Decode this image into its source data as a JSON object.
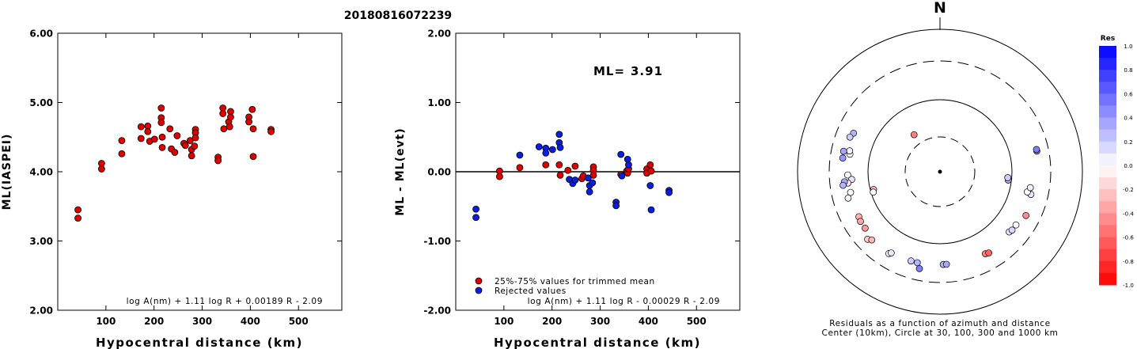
{
  "page_title": "20180816072239",
  "chart_data": [
    {
      "type": "scatter",
      "name": "ml-vs-distance",
      "xlabel": "Hypocentral distance (km)",
      "ylabel": "ML(IASPEI)",
      "xlim": [
        0,
        590
      ],
      "ylim": [
        2.0,
        6.0
      ],
      "x_ticks": [
        "100",
        "200",
        "300",
        "400",
        "500"
      ],
      "y_ticks": [
        "2.00",
        "3.00",
        "4.00",
        "5.00",
        "6.00"
      ],
      "formula": "log A(nm) + 1.11 log R + 0.00189 R - 2.09",
      "marker_color": "#e00000",
      "points": [
        [
          42,
          3.45
        ],
        [
          42,
          3.33
        ],
        [
          91,
          4.12
        ],
        [
          91,
          4.04
        ],
        [
          133,
          4.45
        ],
        [
          133,
          4.26
        ],
        [
          173,
          4.65
        ],
        [
          173,
          4.48
        ],
        [
          187,
          4.66
        ],
        [
          187,
          4.58
        ],
        [
          191,
          4.44
        ],
        [
          201,
          4.47
        ],
        [
          215,
          4.92
        ],
        [
          215,
          4.78
        ],
        [
          215,
          4.71
        ],
        [
          217,
          4.5
        ],
        [
          217,
          4.35
        ],
        [
          233,
          4.62
        ],
        [
          236,
          4.33
        ],
        [
          243,
          4.28
        ],
        [
          248,
          4.52
        ],
        [
          262,
          4.41
        ],
        [
          265,
          4.38
        ],
        [
          275,
          4.45
        ],
        [
          278,
          4.32
        ],
        [
          278,
          4.23
        ],
        [
          284,
          4.37
        ],
        [
          286,
          4.61
        ],
        [
          286,
          4.56
        ],
        [
          286,
          4.49
        ],
        [
          333,
          4.21
        ],
        [
          333,
          4.16
        ],
        [
          343,
          4.92
        ],
        [
          343,
          4.84
        ],
        [
          345,
          4.62
        ],
        [
          355,
          4.72
        ],
        [
          357,
          4.65
        ],
        [
          359,
          4.87
        ],
        [
          359,
          4.79
        ],
        [
          397,
          4.79
        ],
        [
          397,
          4.72
        ],
        [
          404,
          4.9
        ],
        [
          406,
          4.62
        ],
        [
          406,
          4.22
        ],
        [
          443,
          4.61
        ],
        [
          443,
          4.58
        ]
      ]
    },
    {
      "type": "scatter",
      "name": "residual-vs-distance",
      "xlabel": "Hypocentral distance (km)",
      "ylabel": "ML - ML(evt)",
      "xlim": [
        0,
        590
      ],
      "ylim": [
        -2.0,
        2.0
      ],
      "x_ticks": [
        "100",
        "200",
        "300",
        "400",
        "500"
      ],
      "y_ticks": [
        "-2.00",
        "-1.00",
        "0.00",
        "1.00",
        "2.00"
      ],
      "ml_label": "ML=",
      "ml_value": "3.91",
      "formula": "log A(nm) + 1.11 log R - 0.00029 R - 2.09",
      "legend": [
        {
          "label": "25%-75% values for trimmed mean",
          "color": "#e00000"
        },
        {
          "label": "Rejected values",
          "color": "#0a1ee0"
        }
      ],
      "series": [
        {
          "name": "25%-75% values for trimmed mean",
          "color": "#e00000",
          "points": [
            [
              91,
              0.01
            ],
            [
              91,
              -0.07
            ],
            [
              133,
              0.06
            ],
            [
              187,
              0.1
            ],
            [
              215,
              0.1
            ],
            [
              217,
              -0.05
            ],
            [
              233,
              0.02
            ],
            [
              248,
              0.08
            ],
            [
              262,
              -0.1
            ],
            [
              265,
              -0.06
            ],
            [
              286,
              0.07
            ],
            [
              286,
              0.02
            ],
            [
              286,
              -0.05
            ],
            [
              343,
              -0.04
            ],
            [
              355,
              0.01
            ],
            [
              357,
              -0.02
            ],
            [
              359,
              0.04
            ],
            [
              397,
              0.04
            ],
            [
              397,
              -0.02
            ],
            [
              404,
              0.1
            ],
            [
              406,
              0.01
            ]
          ]
        },
        {
          "name": "Rejected values",
          "color": "#0a1ee0",
          "points": [
            [
              42,
              -0.54
            ],
            [
              42,
              -0.66
            ],
            [
              133,
              0.24
            ],
            [
              173,
              0.36
            ],
            [
              187,
              0.34
            ],
            [
              187,
              0.27
            ],
            [
              201,
              0.32
            ],
            [
              215,
              0.54
            ],
            [
              215,
              0.42
            ],
            [
              217,
              0.35
            ],
            [
              236,
              -0.11
            ],
            [
              243,
              -0.17
            ],
            [
              248,
              -0.12
            ],
            [
              275,
              -0.09
            ],
            [
              278,
              -0.2
            ],
            [
              278,
              -0.29
            ],
            [
              284,
              -0.16
            ],
            [
              333,
              -0.44
            ],
            [
              333,
              -0.49
            ],
            [
              343,
              0.25
            ],
            [
              345,
              -0.06
            ],
            [
              357,
              0.18
            ],
            [
              359,
              0.1
            ],
            [
              404,
              -0.2
            ],
            [
              406,
              -0.55
            ],
            [
              443,
              -0.27
            ],
            [
              443,
              -0.3
            ]
          ]
        }
      ]
    },
    {
      "type": "polar-scatter",
      "name": "azimuth-residual-map",
      "north_label": "N",
      "caption_line1": "Residuals as a function of azimuth and distance",
      "caption_line2": "Center (10km), Circle at 30, 100, 300 and 1000 km",
      "colorbar_title": "Res",
      "colorbar_ticks": [
        "1.0",
        "0.8",
        "0.6",
        "0.4",
        "0.2",
        "0.0",
        "-0.2",
        "-0.4",
        "-0.6",
        "-0.8",
        "-1.0"
      ],
      "colorbar_range": [
        -1.0,
        1.0
      ],
      "colors": {
        "positive": "#0000ff",
        "negative": "#ff0000",
        "zero": "#ffffff"
      },
      "points": [
        {
          "az": 325,
          "dist_km": 42,
          "res": -0.5
        },
        {
          "az": 294,
          "dist_km": 190,
          "res": 0.3
        },
        {
          "az": 291,
          "dist_km": 200,
          "res": 0.2
        },
        {
          "az": 281,
          "dist_km": 175,
          "res": 0.0
        },
        {
          "az": 283,
          "dist_km": 180,
          "res": 0.05
        },
        {
          "az": 278,
          "dist_km": 210,
          "res": 0.4
        },
        {
          "az": 282,
          "dist_km": 212,
          "res": 0.35
        },
        {
          "az": 268,
          "dist_km": 178,
          "res": 0.0
        },
        {
          "az": 265,
          "dist_km": 160,
          "res": 0.1
        },
        {
          "az": 263,
          "dist_km": 180,
          "res": -0.1
        },
        {
          "az": 264,
          "dist_km": 198,
          "res": 0.35
        },
        {
          "az": 262,
          "dist_km": 208,
          "res": 0.3
        },
        {
          "az": 257,
          "dist_km": 175,
          "res": 0.0
        },
        {
          "az": 255,
          "dist_km": 90,
          "res": -0.25
        },
        {
          "az": 253,
          "dist_km": 93,
          "res": 0.0
        },
        {
          "az": 254,
          "dist_km": 195,
          "res": 0.05
        },
        {
          "az": 241,
          "dist_km": 180,
          "res": -0.3
        },
        {
          "az": 238,
          "dist_km": 185,
          "res": -0.35
        },
        {
          "az": 233,
          "dist_km": 185,
          "res": -0.4
        },
        {
          "az": 227,
          "dist_km": 215,
          "res": -0.2
        },
        {
          "az": 225,
          "dist_km": 200,
          "res": -0.3
        },
        {
          "az": 212,
          "dist_km": 200,
          "res": 0.0
        },
        {
          "az": 211,
          "dist_km": 190,
          "res": 0.1
        },
        {
          "az": 198,
          "dist_km": 185,
          "res": 0.2
        },
        {
          "az": 194,
          "dist_km": 185,
          "res": 0.3
        },
        {
          "az": 192,
          "dist_km": 215,
          "res": 0.5
        },
        {
          "az": 178,
          "dist_km": 180,
          "res": 0.3
        },
        {
          "az": 176,
          "dist_km": 180,
          "res": 0.35
        },
        {
          "az": 151,
          "dist_km": 185,
          "res": -0.5
        },
        {
          "az": 149,
          "dist_km": 190,
          "res": -0.6
        },
        {
          "az": 131,
          "dist_km": 175,
          "res": 0.1
        },
        {
          "az": 129,
          "dist_km": 180,
          "res": 0.15
        },
        {
          "az": 125,
          "dist_km": 180,
          "res": 0.0
        },
        {
          "az": 117,
          "dist_km": 200,
          "res": -0.45
        },
        {
          "az": 104,
          "dist_km": 185,
          "res": 0.1
        },
        {
          "az": 103,
          "dist_km": 165,
          "res": 0.0
        },
        {
          "az": 100,
          "dist_km": 175,
          "res": 0.05
        },
        {
          "az": 97,
          "dist_km": 90,
          "res": 0.3
        },
        {
          "az": 95,
          "dist_km": 88,
          "res": 0.2
        },
        {
          "az": 78,
          "dist_km": 215,
          "res": 0.55
        },
        {
          "az": 77,
          "dist_km": 215,
          "res": 0.5
        }
      ]
    }
  ]
}
